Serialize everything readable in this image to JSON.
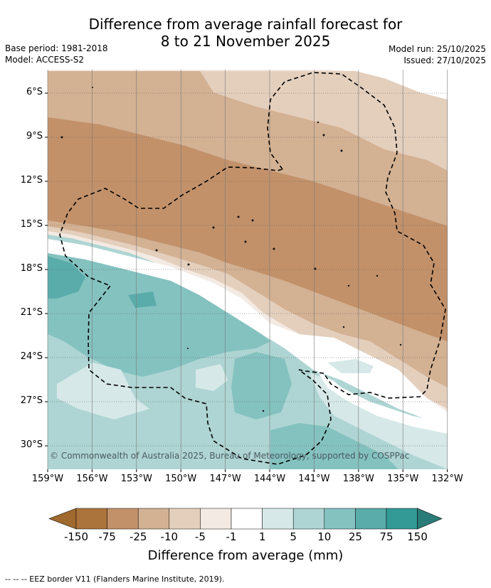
{
  "title_line1": "Difference from average rainfall forecast for",
  "title_line2": "8 to 21 November 2025",
  "base_period": "Base period: 1981-2018",
  "model": "Model: ACCESS-S2",
  "model_run": "Model run: 25/10/2025",
  "issued": "Issued: 27/10/2025",
  "latitudes": [
    "6°S",
    "9°S",
    "12°S",
    "15°S",
    "18°S",
    "21°S",
    "24°S",
    "27°S",
    "30°S"
  ],
  "longitudes": [
    "159°W",
    "156°W",
    "153°W",
    "150°W",
    "147°W",
    "144°W",
    "141°W",
    "138°W",
    "135°W",
    "132°W"
  ],
  "colorbar": {
    "labels": [
      "-150",
      "-75",
      "-25",
      "-10",
      "-5",
      "-1",
      "1",
      "5",
      "10",
      "25",
      "75",
      "150"
    ],
    "colors": [
      "#ab743c",
      "#c2916a",
      "#d3b193",
      "#e4cfbd",
      "#f3eae3",
      "#ffffff",
      "#d6e9e8",
      "#aed5d3",
      "#84c2c0",
      "#5aacaa",
      "#339a96",
      "#2a7c78"
    ],
    "title": "Difference from average (mm)"
  },
  "copyright": "© Commonwealth of Australia 2025, Bureau of Meteorology, supported by COSPPac",
  "legend": "-- -- -- EEZ border V11 (Flanders Marine Institute, 2019)."
}
